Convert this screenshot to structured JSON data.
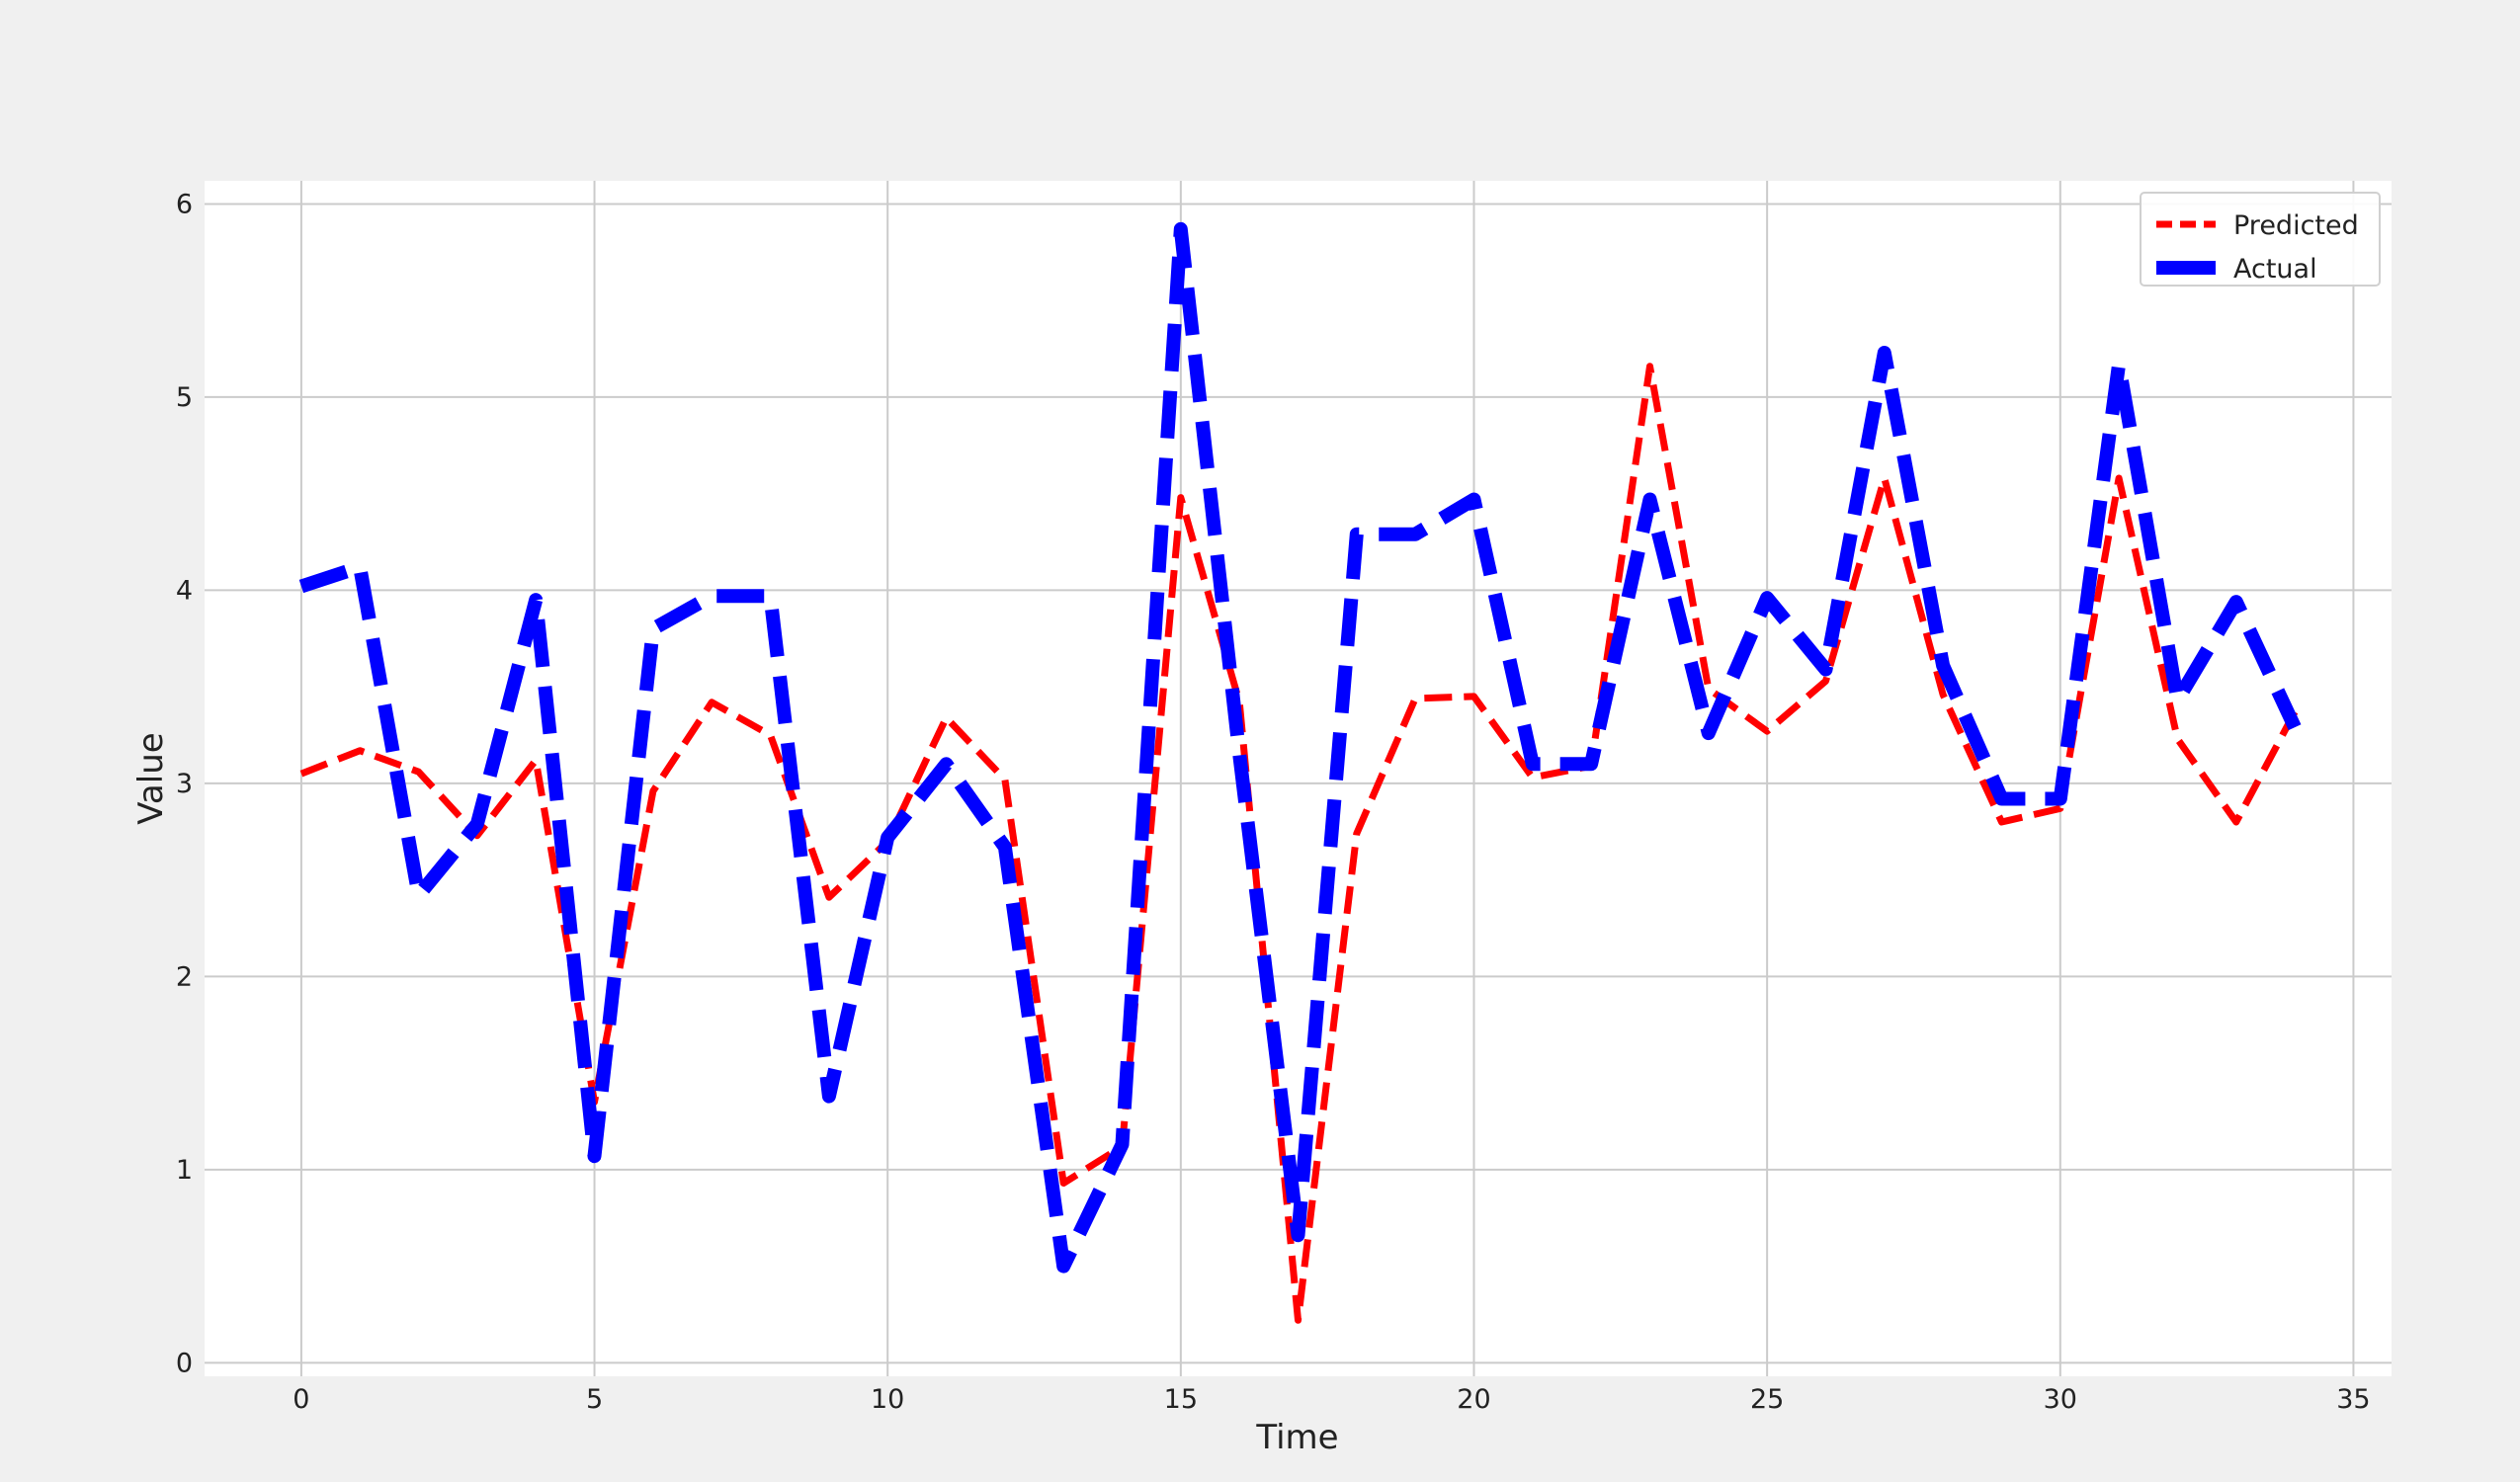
{
  "chart_data": {
    "type": "line",
    "title": "",
    "xlabel": "Time",
    "ylabel": "Value",
    "xlim": [
      -1.65,
      35.65
    ],
    "ylim": [
      -0.07,
      6.12
    ],
    "xticks": [
      0,
      5,
      10,
      15,
      20,
      25,
      30,
      35
    ],
    "yticks": [
      0,
      1,
      2,
      3,
      4,
      5,
      6
    ],
    "grid": true,
    "legend_position": "top-right",
    "x": [
      0,
      1,
      2,
      3,
      4,
      5,
      6,
      7,
      8,
      9,
      10,
      11,
      12,
      13,
      14,
      15,
      16,
      17,
      18,
      19,
      20,
      21,
      22,
      23,
      24,
      25,
      26,
      27,
      28,
      29,
      30,
      31,
      32,
      33,
      34
    ],
    "series": [
      {
        "name": "Predicted",
        "color": "#ff0000",
        "line_style": "dashed",
        "values": [
          3.05,
          3.17,
          3.06,
          2.73,
          3.12,
          1.35,
          2.96,
          3.42,
          3.25,
          2.41,
          2.7,
          3.34,
          3.02,
          0.93,
          1.12,
          4.48,
          3.42,
          0.22,
          2.74,
          3.44,
          3.45,
          3.03,
          3.09,
          5.16,
          3.49,
          3.27,
          3.53,
          4.58,
          3.46,
          2.8,
          2.87,
          4.58,
          3.23,
          2.8,
          3.37
        ]
      },
      {
        "name": "Actual",
        "color": "#0000ff",
        "line_style": "dashed",
        "values": [
          4.02,
          4.12,
          2.42,
          2.79,
          3.95,
          1.07,
          3.8,
          3.97,
          3.97,
          1.38,
          2.72,
          3.1,
          2.67,
          0.5,
          1.13,
          5.87,
          3.15,
          0.66,
          4.29,
          4.29,
          4.47,
          3.1,
          3.1,
          4.47,
          3.26,
          3.96,
          3.59,
          5.23,
          3.61,
          2.92,
          2.92,
          5.17,
          3.43,
          3.94,
          3.29
        ]
      }
    ]
  }
}
